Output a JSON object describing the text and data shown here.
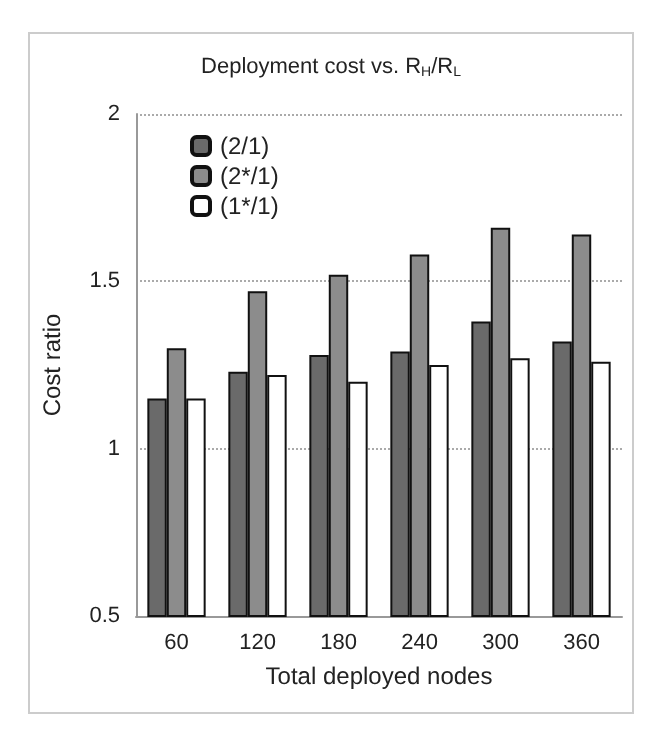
{
  "chart_data": {
    "type": "bar",
    "title": "Deployment cost vs. R$_{H}$/R$_{L}$",
    "xlabel": "Total deployed nodes",
    "ylabel": "Cost ratio",
    "categories": [
      "60",
      "120",
      "180",
      "240",
      "300",
      "360"
    ],
    "series": [
      {
        "name": "(2/1)",
        "color": "#6a6a6a",
        "values": [
          1.15,
          1.23,
          1.28,
          1.29,
          1.38,
          1.32
        ]
      },
      {
        "name": "(2*/1)",
        "color": "#8c8c8c",
        "values": [
          1.3,
          1.47,
          1.52,
          1.58,
          1.66,
          1.64
        ]
      },
      {
        "name": "(1*/1)",
        "color": "#ffffff",
        "values": [
          1.15,
          1.22,
          1.2,
          1.25,
          1.27,
          1.26
        ]
      }
    ],
    "ylim": [
      0.5,
      2
    ],
    "yticks": [
      0.5,
      1,
      1.5,
      2
    ],
    "grid": "y",
    "legend": "top left"
  }
}
